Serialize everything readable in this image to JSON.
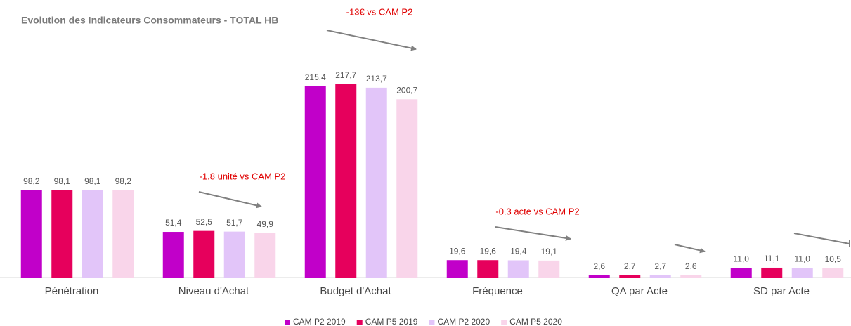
{
  "chart_data": {
    "type": "bar",
    "title": "Evolution des Indicateurs Consommateurs - TOTAL HB",
    "categories": [
      "Pénétration",
      "Niveau d'Achat",
      "Budget d'Achat",
      "Fréquence",
      "QA par Acte",
      "SD par Acte"
    ],
    "series": [
      {
        "name": "CAM P2 2019",
        "color": "#c100c9",
        "values": [
          98.2,
          51.4,
          215.4,
          19.6,
          2.6,
          11.0
        ],
        "value_labels": [
          "98,2",
          "51,4",
          "215,4",
          "19,6",
          "2,6",
          "11,0"
        ]
      },
      {
        "name": "CAM P5 2019",
        "color": "#e6005c",
        "values": [
          98.1,
          52.5,
          217.7,
          19.6,
          2.7,
          11.1
        ],
        "value_labels": [
          "98,1",
          "52,5",
          "217,7",
          "19,6",
          "2,7",
          "11,1"
        ]
      },
      {
        "name": "CAM P2 2020",
        "color": "#e2c5f9",
        "values": [
          98.1,
          51.7,
          213.7,
          19.4,
          2.7,
          11.0
        ],
        "value_labels": [
          "98,1",
          "51,7",
          "213,7",
          "19,4",
          "2,7",
          "11,0"
        ]
      },
      {
        "name": "CAM P5 2020",
        "color": "#f9d5ea",
        "values": [
          98.2,
          49.9,
          200.7,
          19.1,
          2.6,
          10.5
        ],
        "value_labels": [
          "98,2",
          "49,9",
          "200,7",
          "19,1",
          "2,6",
          "10,5"
        ]
      }
    ],
    "ylim": [
      0,
      250
    ],
    "annotations": [
      "-13€ vs CAM P2",
      "-1.8 unité vs CAM P2",
      "-0.3 acte vs CAM P2"
    ]
  }
}
